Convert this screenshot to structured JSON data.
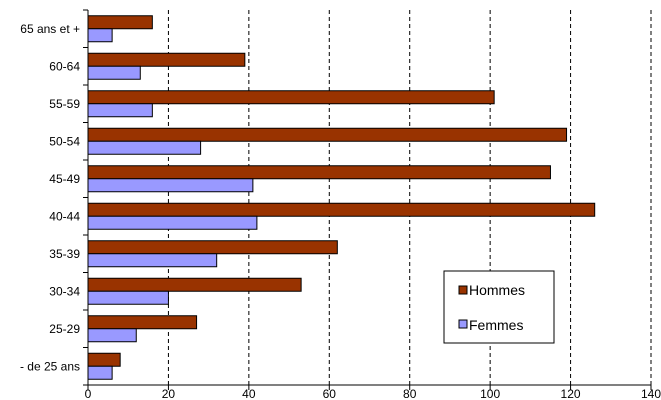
{
  "chart_data": {
    "type": "bar",
    "orientation": "horizontal",
    "categories": [
      "- de 25 ans",
      "25-29",
      "30-34",
      "35-39",
      "40-44",
      "45-49",
      "50-54",
      "55-59",
      "60-64",
      "65 ans et +"
    ],
    "series": [
      {
        "name": "Hommes",
        "color": "#993300",
        "values": [
          8,
          27,
          53,
          62,
          126,
          115,
          119,
          101,
          39,
          16
        ]
      },
      {
        "name": "Femmes",
        "color": "#9999ff",
        "values": [
          6,
          12,
          20,
          32,
          42,
          41,
          28,
          16,
          13,
          6
        ]
      }
    ],
    "xlim": [
      0,
      140
    ],
    "xticks": [
      0,
      20,
      40,
      60,
      80,
      100,
      120,
      140
    ],
    "grid": "vertical dashed",
    "legend": {
      "position": "bottom-right",
      "entries": [
        "Hommes",
        "Femmes"
      ]
    },
    "title": "",
    "xlabel": "",
    "ylabel": ""
  }
}
